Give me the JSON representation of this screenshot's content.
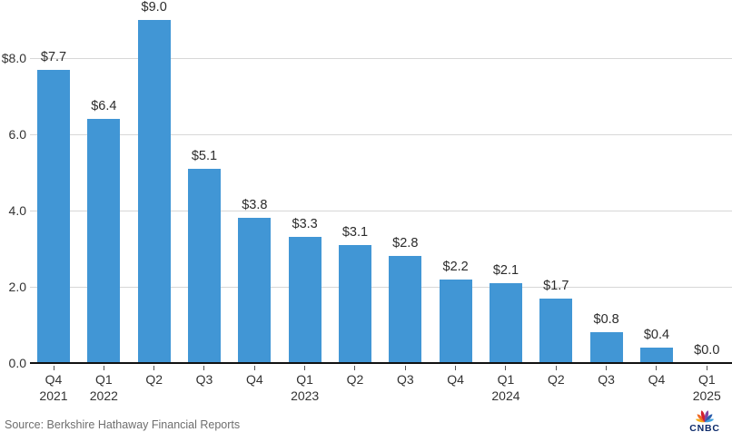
{
  "chart_data": {
    "type": "bar",
    "title": "",
    "xlabel": "",
    "ylabel": "",
    "ylim": [
      0,
      9.4
    ],
    "grid": true,
    "legend": "none",
    "categories": [
      "Q4 2021",
      "Q1 2022",
      "Q2 2022",
      "Q3 2022",
      "Q4 2022",
      "Q1 2023",
      "Q2 2023",
      "Q3 2023",
      "Q4 2023",
      "Q1 2024",
      "Q2 2024",
      "Q3 2024",
      "Q4 2024",
      "Q1 2025"
    ],
    "x_tick_lines": [
      [
        "Q4",
        "2021"
      ],
      [
        "Q1",
        "2022"
      ],
      [
        "Q2",
        ""
      ],
      [
        "Q3",
        ""
      ],
      [
        "Q4",
        ""
      ],
      [
        "Q1",
        "2023"
      ],
      [
        "Q2",
        ""
      ],
      [
        "Q3",
        ""
      ],
      [
        "Q4",
        ""
      ],
      [
        "Q1",
        "2024"
      ],
      [
        "Q2",
        ""
      ],
      [
        "Q3",
        ""
      ],
      [
        "Q4",
        ""
      ],
      [
        "Q1",
        "2025"
      ]
    ],
    "values": [
      7.7,
      6.4,
      9.0,
      5.1,
      3.8,
      3.3,
      3.1,
      2.8,
      2.2,
      2.1,
      1.7,
      0.8,
      0.4,
      0.0
    ],
    "bar_labels": [
      "$7.7",
      "$6.4",
      "$9.0",
      "$5.1",
      "$3.8",
      "$3.3",
      "$3.1",
      "$2.8",
      "$2.2",
      "$2.1",
      "$1.7",
      "$0.8",
      "$0.4",
      "$0.0"
    ],
    "y_ticks": [
      {
        "value": 8,
        "label": "$8.0"
      },
      {
        "value": 6,
        "label": "6.0"
      },
      {
        "value": 4,
        "label": "4.0"
      },
      {
        "value": 2,
        "label": "2.0"
      },
      {
        "value": 0,
        "label": "0.0"
      }
    ],
    "colors": {
      "bar": "#4196d5",
      "gridline": "#d7d7d7",
      "axis": "#111111",
      "tick": "#555555",
      "value_label": "#2b2b2b",
      "axis_label": "#333333"
    }
  },
  "footer": {
    "source": "Source: Berkshire Hathaway Financial Reports",
    "logo_text": "CNBC",
    "logo_colors": {
      "text": "#0d2b6b",
      "feathers": [
        "#f3b01c",
        "#ef6a25",
        "#d22030",
        "#8146a4",
        "#2d5fac",
        "#44a2dd"
      ]
    }
  }
}
